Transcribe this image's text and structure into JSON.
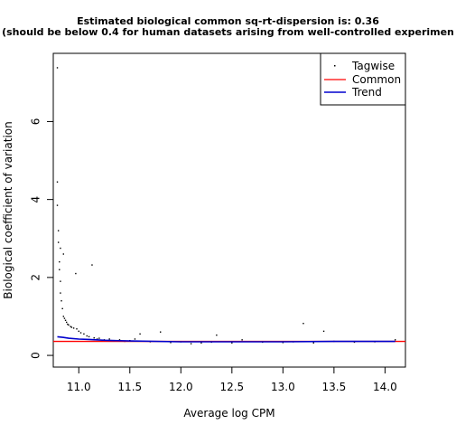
{
  "chart_data": {
    "type": "scatter",
    "title": "Estimated biological common sq-rt-dispersion is: 0.36",
    "subtitle": "(should be below 0.4 for human datasets arising from well-controlled experimen",
    "xlabel": "Average log CPM",
    "ylabel": "Biological coefficient of variation",
    "xlim": [
      10.75,
      14.2
    ],
    "ylim": [
      -0.3,
      7.75
    ],
    "x_ticks": [
      11.0,
      11.5,
      12.0,
      12.5,
      13.0,
      13.5,
      14.0
    ],
    "x_tick_labels": [
      "11.0",
      "11.5",
      "12.0",
      "12.5",
      "13.0",
      "13.5",
      "14.0"
    ],
    "y_ticks": [
      0,
      2,
      4,
      6
    ],
    "y_tick_labels": [
      "0",
      "2",
      "4",
      "6"
    ],
    "legend_position": "top-right",
    "colors": {
      "tagwise": "#000000",
      "common": "#ff0000",
      "trend": "#0000cd"
    },
    "series": [
      {
        "name": "Tagwise",
        "kind": "points",
        "x": [
          10.79,
          10.79,
          10.79,
          10.8,
          10.8,
          10.81,
          10.81,
          10.82,
          10.82,
          10.82,
          10.83,
          10.84,
          10.85,
          10.85,
          10.86,
          10.87,
          10.88,
          10.89,
          10.9,
          10.92,
          10.93,
          10.95,
          10.97,
          10.98,
          11.0,
          11.02,
          11.05,
          11.08,
          11.1,
          11.13,
          11.15,
          11.18,
          11.2,
          11.25,
          11.3,
          11.35,
          11.4,
          11.45,
          11.5,
          11.55,
          11.6,
          11.7,
          11.8,
          11.9,
          12.0,
          12.1,
          12.2,
          12.3,
          12.35,
          12.5,
          12.6,
          12.8,
          13.0,
          13.1,
          13.2,
          13.3,
          13.4,
          13.5,
          13.7,
          13.9,
          14.1
        ],
        "y": [
          7.38,
          4.45,
          3.85,
          3.2,
          2.9,
          2.4,
          2.2,
          1.9,
          1.6,
          2.75,
          1.4,
          1.2,
          2.6,
          1.0,
          0.95,
          0.9,
          0.85,
          0.8,
          0.78,
          0.74,
          0.72,
          0.7,
          2.1,
          0.68,
          0.62,
          0.58,
          0.55,
          0.5,
          0.48,
          2.32,
          0.45,
          0.42,
          0.44,
          0.4,
          0.42,
          0.38,
          0.4,
          0.36,
          0.38,
          0.42,
          0.55,
          0.35,
          0.6,
          0.33,
          0.35,
          0.3,
          0.32,
          0.34,
          0.52,
          0.32,
          0.4,
          0.34,
          0.33,
          0.35,
          0.82,
          0.32,
          0.62,
          0.36,
          0.34,
          0.35,
          0.4
        ]
      },
      {
        "name": "Common",
        "kind": "hline",
        "y": 0.36
      },
      {
        "name": "Trend",
        "kind": "line",
        "x": [
          10.79,
          10.85,
          10.9,
          11.0,
          11.1,
          11.25,
          11.5,
          12.0,
          12.5,
          13.0,
          13.5,
          14.1
        ],
        "y": [
          0.48,
          0.46,
          0.44,
          0.42,
          0.41,
          0.39,
          0.37,
          0.35,
          0.35,
          0.35,
          0.36,
          0.36
        ]
      }
    ]
  }
}
